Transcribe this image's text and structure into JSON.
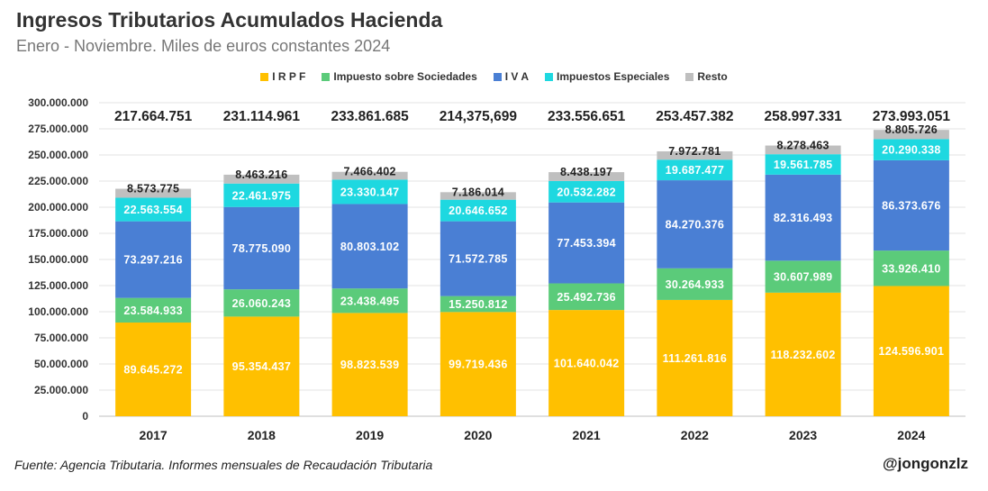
{
  "header": {
    "title": "Ingresos Tributarios Acumulados Hacienda",
    "subtitle": "Enero - Noviembre. Miles de euros constantes 2024"
  },
  "footer": {
    "source": "Fuente: Agencia Tributaria. Informes mensuales de Recaudación Tributaria",
    "handle": "@jongonzlz"
  },
  "chart_data": {
    "type": "bar",
    "stacked": true,
    "title": "Ingresos Tributarios Acumulados Hacienda",
    "subtitle": "Enero - Noviembre. Miles de euros constantes 2024",
    "categories": [
      "2017",
      "2018",
      "2019",
      "2020",
      "2021",
      "2022",
      "2023",
      "2024"
    ],
    "ylim": [
      0,
      300000000
    ],
    "yticks": [
      0,
      25000000,
      50000000,
      75000000,
      100000000,
      125000000,
      150000000,
      175000000,
      200000000,
      225000000,
      250000000,
      275000000,
      300000000
    ],
    "ytick_labels": [
      "0",
      "25.000.000",
      "50.000.000",
      "75.000.000",
      "100.000.000",
      "125.000.000",
      "150.000.000",
      "175.000.000",
      "200.000.000",
      "225.000.000",
      "250.000.000",
      "275.000.000",
      "300.000.000"
    ],
    "grid": true,
    "legend_position": "top-center",
    "series": [
      {
        "name": "I R P F",
        "color": "#FFC000",
        "values": [
          89645272,
          95354437,
          98823539,
          99719436,
          101640042,
          111261816,
          118232602,
          124596901
        ],
        "labels": [
          "89.645.272",
          "95.354.437",
          "98.823.539",
          "99.719.436",
          "101.640.042",
          "111.261.816",
          "118.232.602",
          "124.596.901"
        ]
      },
      {
        "name": "Impuesto sobre Sociedades",
        "color": "#5BCB7A",
        "values": [
          23584933,
          26060243,
          23438495,
          15250812,
          25492736,
          30264933,
          30607989,
          33926410
        ],
        "labels": [
          "23.584.933",
          "26.060.243",
          "23.438.495",
          "15.250.812",
          "25.492.736",
          "30.264.933",
          "30.607.989",
          "33.926.410"
        ]
      },
      {
        "name": "I V A",
        "color": "#4A7FD4",
        "values": [
          73297216,
          78775090,
          80803102,
          71572785,
          77453394,
          84270376,
          82316493,
          86373676
        ],
        "labels": [
          "73.297.216",
          "78.775.090",
          "80.803.102",
          "71.572.785",
          "77.453.394",
          "84.270.376",
          "82.316.493",
          "86.373.676"
        ]
      },
      {
        "name": "Impuestos Especiales",
        "color": "#1ED8E0",
        "values": [
          22563554,
          22461975,
          23330147,
          20646652,
          20532282,
          19687477,
          19561785,
          20290338
        ],
        "labels": [
          "22.563.554",
          "22.461.975",
          "23.330.147",
          "20.646.652",
          "20.532.282",
          "19.687.477",
          "19.561.785",
          "20.290.338"
        ]
      },
      {
        "name": "Resto",
        "color": "#BFBFBF",
        "values": [
          8573775,
          8463216,
          7466402,
          7186014,
          8438197,
          7972781,
          8278463,
          8805726
        ],
        "labels": [
          "8.573.775",
          "8.463.216",
          "7.466.402",
          "7.186.014",
          "8.438.197",
          "7.972.781",
          "8.278.463",
          "8.805.726"
        ]
      }
    ],
    "totals": [
      217664751,
      231114961,
      233861685,
      214375699,
      233556651,
      253457382,
      258997331,
      273993051
    ],
    "total_labels": [
      "217.664.751",
      "231.114.961",
      "233.861.685",
      "214,375,699",
      "233.556.651",
      "253.457.382",
      "258.997.331",
      "273.993.051"
    ]
  }
}
